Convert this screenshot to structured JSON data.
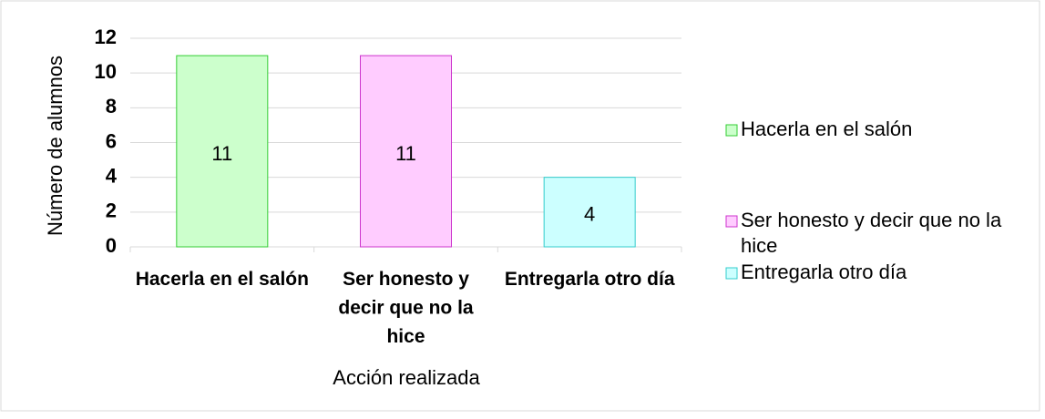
{
  "chart_data": {
    "type": "bar",
    "x_label": "Acción realizada",
    "y_label": "Número de alumnos",
    "categories": [
      "Hacerla en el salón",
      "Ser honesto y decir que no la hice",
      "Entregarla otro día"
    ],
    "values": [
      11,
      11,
      4
    ],
    "colors": [
      "#ccffcc",
      "#ffccff",
      "#ccffff"
    ],
    "edge_colors": [
      "#33cc33",
      "#cc33cc",
      "#33cccc"
    ],
    "ylim": [
      0,
      12
    ],
    "yticks": [
      0,
      2,
      4,
      6,
      8,
      10,
      12
    ],
    "grid": true,
    "legend": "right"
  }
}
